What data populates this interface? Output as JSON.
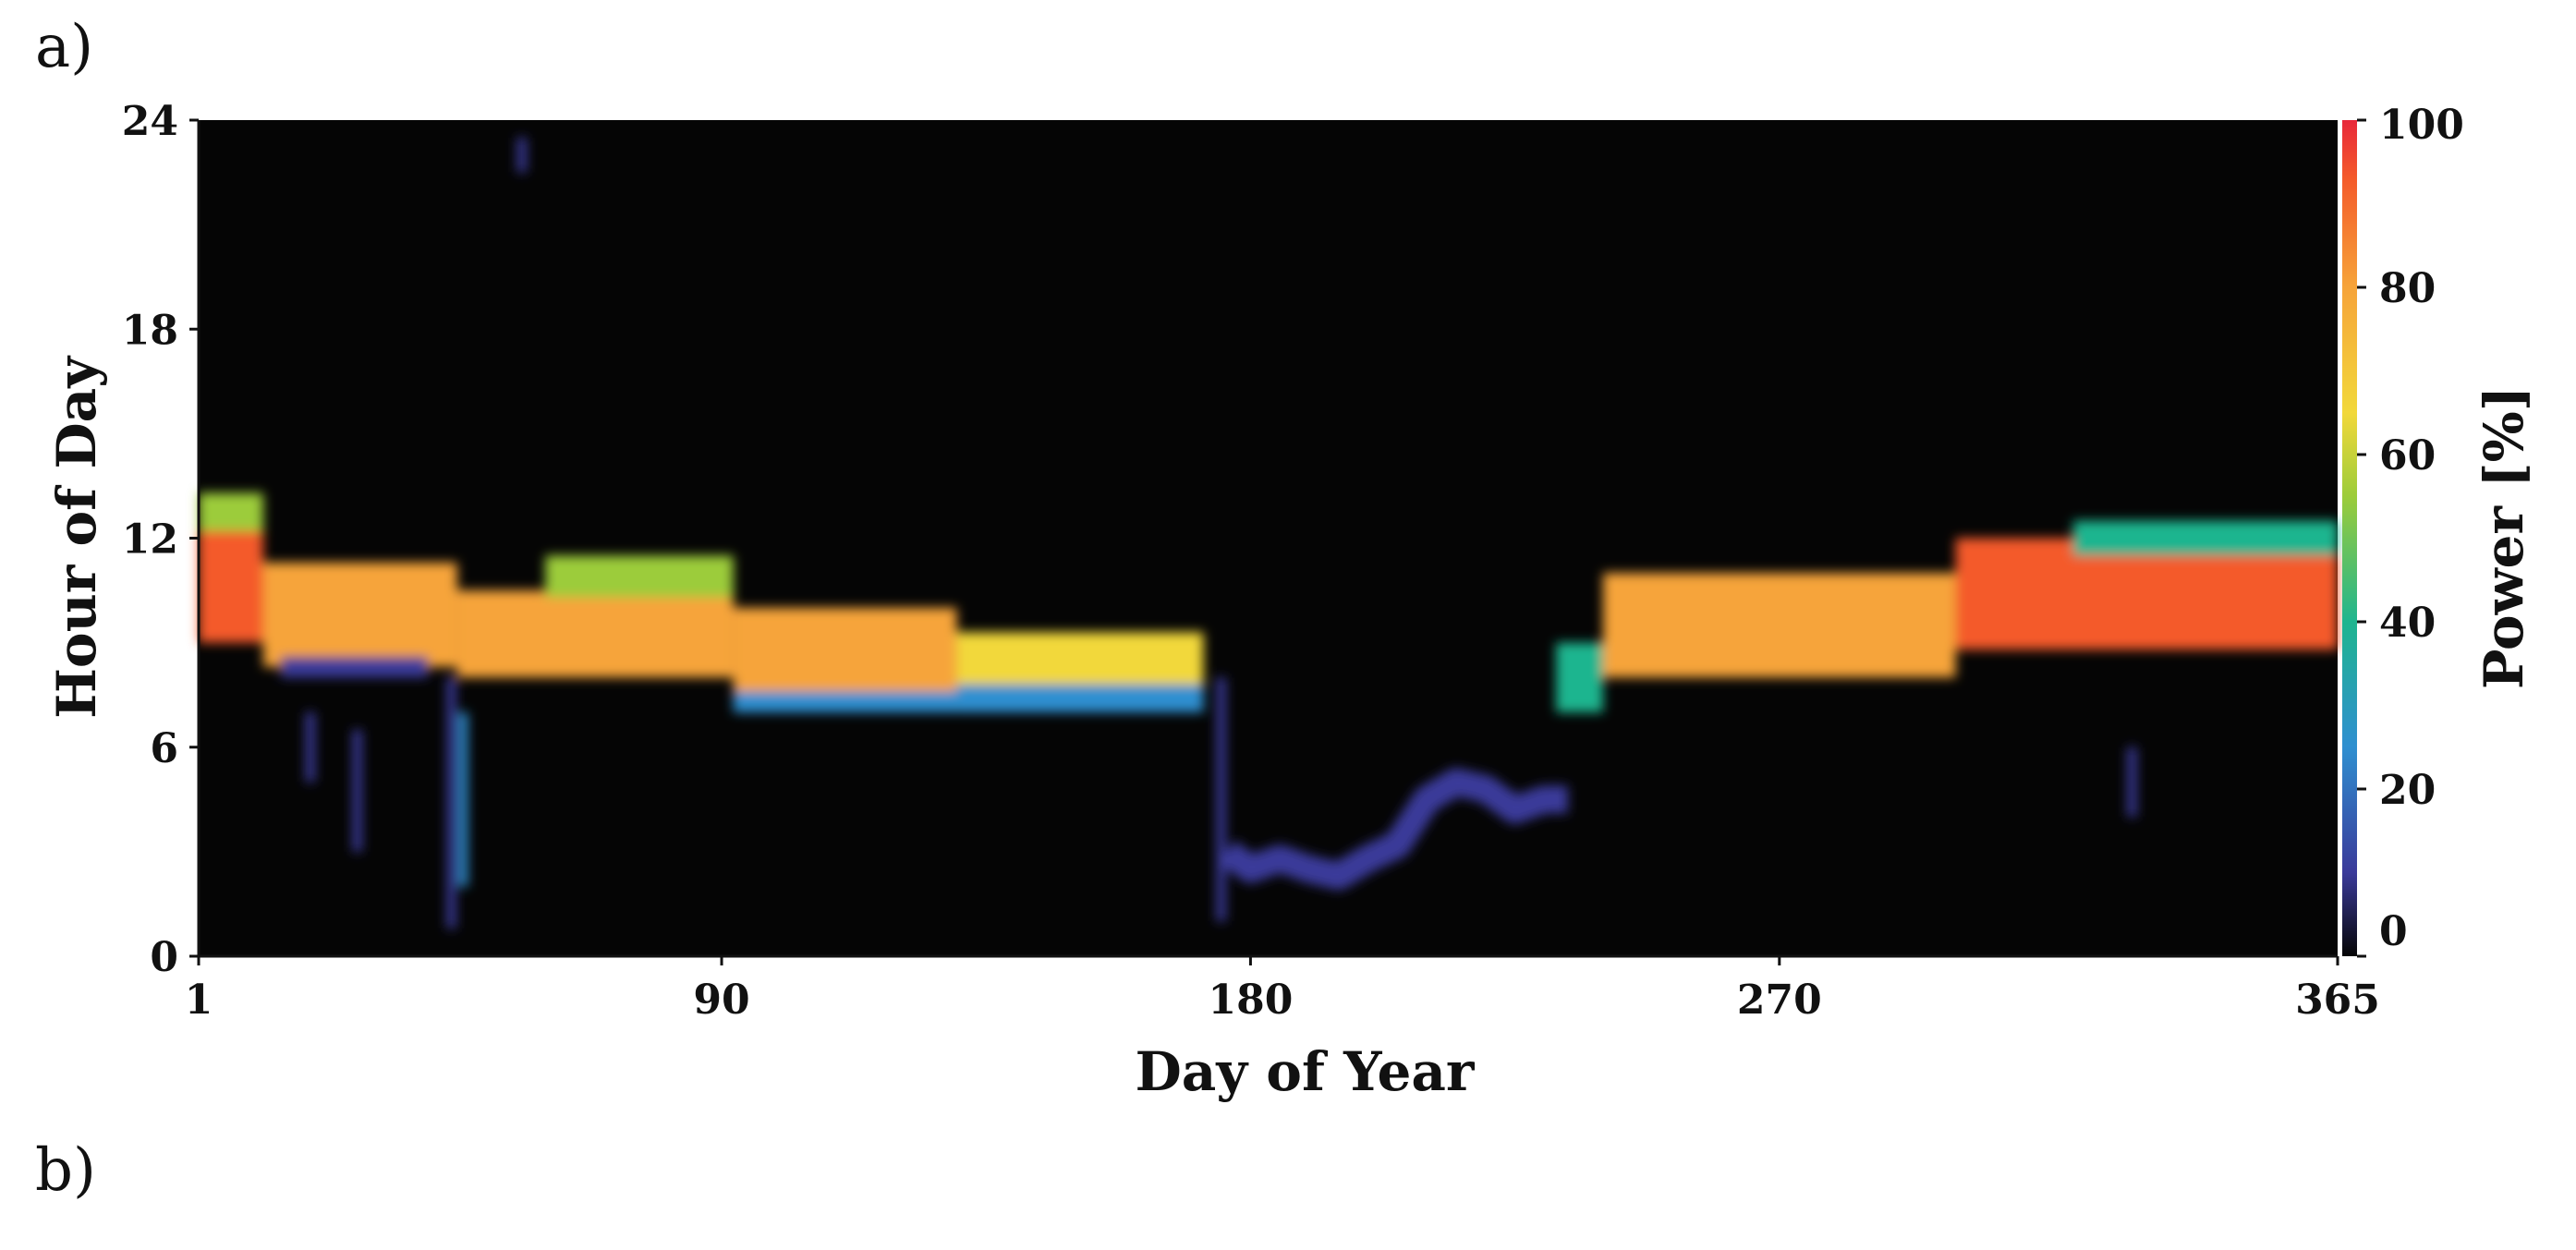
{
  "panels": {
    "a": "a)",
    "b": "b)"
  },
  "colors": {
    "background": "#050505",
    "colormap": [
      "#14122a",
      "#3a3a9a",
      "#2f8fd0",
      "#1fb58f",
      "#9ccc3a",
      "#f2d83a",
      "#f6a43a",
      "#f45a2a",
      "#e8283a"
    ]
  },
  "chart_data": {
    "type": "heatmap",
    "xlabel": "Day of Year",
    "ylabel": "Hour of Day",
    "colorbar_label": "Power [%]",
    "xlim": [
      1,
      365
    ],
    "ylim": [
      0,
      24
    ],
    "clim": [
      0,
      100
    ],
    "x_ticks": [
      1,
      90,
      180,
      270,
      365
    ],
    "y_ticks": [
      0,
      6,
      12,
      18,
      24
    ],
    "c_ticks": [
      0,
      20,
      40,
      60,
      80,
      100
    ],
    "grid": false,
    "segments": [
      {
        "x0": 1,
        "x1": 12,
        "y0": 9.0,
        "y1": 12.2,
        "v": 85
      },
      {
        "x0": 1,
        "x1": 12,
        "y0": 12.2,
        "y1": 13.3,
        "v": 45
      },
      {
        "x0": 12,
        "x1": 45,
        "y0": 8.3,
        "y1": 11.3,
        "v": 80
      },
      {
        "x0": 15,
        "x1": 40,
        "y0": 8.0,
        "y1": 8.6,
        "v": 15
      },
      {
        "x0": 45,
        "x1": 92,
        "y0": 8.0,
        "y1": 10.5,
        "v": 78
      },
      {
        "x0": 60,
        "x1": 92,
        "y0": 10.3,
        "y1": 11.5,
        "v": 45
      },
      {
        "x0": 92,
        "x1": 130,
        "y0": 7.5,
        "y1": 10.0,
        "v": 75
      },
      {
        "x0": 92,
        "x1": 130,
        "y0": 7.0,
        "y1": 7.6,
        "v": 25
      },
      {
        "x0": 130,
        "x1": 172,
        "y0": 7.8,
        "y1": 9.3,
        "v": 65
      },
      {
        "x0": 130,
        "x1": 172,
        "y0": 7.0,
        "y1": 7.8,
        "v": 30
      },
      {
        "x0": 232,
        "x1": 240,
        "y0": 7.0,
        "y1": 9.0,
        "v": 35
      },
      {
        "x0": 240,
        "x1": 300,
        "y0": 8.0,
        "y1": 11.0,
        "v": 78
      },
      {
        "x0": 300,
        "x1": 365,
        "y0": 8.8,
        "y1": 12.0,
        "v": 85
      },
      {
        "x0": 320,
        "x1": 365,
        "y0": 11.5,
        "y1": 12.5,
        "v": 40
      }
    ],
    "streaks": [
      {
        "x": 44,
        "y0": 0.8,
        "y1": 8.0,
        "v": 15
      },
      {
        "x": 46,
        "y0": 2.0,
        "y1": 7.0,
        "v": 20
      },
      {
        "x": 20,
        "y0": 5.0,
        "y1": 7.0,
        "v": 8
      },
      {
        "x": 28,
        "y0": 3.0,
        "y1": 6.5,
        "v": 8
      },
      {
        "x": 56,
        "y0": 22.5,
        "y1": 23.5,
        "v": 8
      },
      {
        "x": 175,
        "y0": 1.0,
        "y1": 8.0,
        "v": 12
      },
      {
        "x": 330,
        "y0": 4.0,
        "y1": 6.0,
        "v": 8
      }
    ],
    "summer_band": [
      [
        176,
        3.0
      ],
      [
        180,
        2.5
      ],
      [
        185,
        2.8
      ],
      [
        190,
        2.5
      ],
      [
        195,
        2.3
      ],
      [
        200,
        2.8
      ],
      [
        205,
        3.2
      ],
      [
        210,
        4.5
      ],
      [
        215,
        5.0
      ],
      [
        220,
        4.8
      ],
      [
        225,
        4.2
      ],
      [
        230,
        4.5
      ],
      [
        234,
        4.5
      ]
    ]
  }
}
